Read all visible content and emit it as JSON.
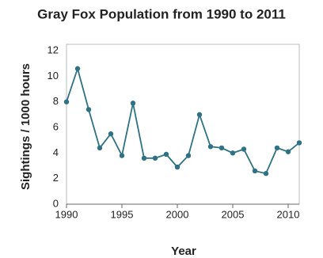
{
  "chart_data": {
    "type": "line",
    "title": "Gray Fox Population from 1990 to 2011",
    "x_label": "Year",
    "y_label": "Sightings / 1000 hours",
    "series": [
      {
        "name": "Sightings",
        "color": "#2e7283",
        "x": [
          1990,
          1991,
          1992,
          1993,
          1994,
          1995,
          1996,
          1997,
          1998,
          1999,
          2000,
          2001,
          2002,
          2003,
          2004,
          2005,
          2006,
          2007,
          2008,
          2009,
          2010,
          2011
        ],
        "values": [
          8.0,
          10.6,
          7.4,
          4.4,
          5.5,
          3.8,
          7.9,
          3.6,
          3.6,
          3.9,
          2.9,
          3.8,
          7.0,
          4.5,
          4.4,
          4.0,
          4.3,
          2.6,
          2.4,
          4.4,
          4.1,
          4.8
        ]
      }
    ],
    "xlim": [
      1990,
      2011
    ],
    "xticks": [
      1990,
      1995,
      2000,
      2005,
      2010
    ],
    "ylim": [
      0,
      12.5
    ],
    "yticks": [
      0,
      2,
      4,
      6,
      8,
      10,
      12
    ],
    "grid": false
  }
}
